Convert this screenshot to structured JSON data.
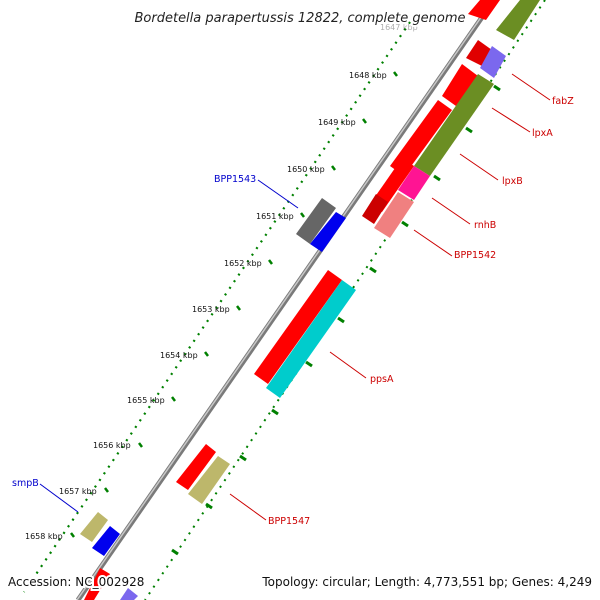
{
  "title": "Bordetella parapertussis 12822, complete genome",
  "accession": "Accession: NC_002928",
  "summary": "Topology: circular; Length: 4,773,551 bp; Genes: 4,249",
  "ticks": [
    "1647 kbp",
    "1648 kbp",
    "1649 kbp",
    "1650 kbp",
    "1651 kbp",
    "1652 kbp",
    "1653 kbp",
    "1654 kbp",
    "1655 kbp",
    "1656 kbp",
    "1657 kbp",
    "1658 kbp"
  ],
  "gene_labels": [
    {
      "name": "fabZ",
      "color": "#cc0000"
    },
    {
      "name": "lpxA",
      "color": "#cc0000"
    },
    {
      "name": "lpxB",
      "color": "#cc0000"
    },
    {
      "name": "rnhB",
      "color": "#cc0000"
    },
    {
      "name": "BPP1542",
      "color": "#cc0000"
    },
    {
      "name": "ppsA",
      "color": "#cc0000"
    },
    {
      "name": "BPP1547",
      "color": "#cc0000"
    },
    {
      "name": "BPP1543",
      "color": "#0000cc"
    },
    {
      "name": "smpB",
      "color": "#0000cc"
    }
  ],
  "colors": {
    "cds_forward": "#ff0000",
    "cds_reverse": "#ff0000",
    "blue_feature": "#0000ee",
    "gray_feature": "#666666",
    "olive_feature": "#6b8e23",
    "cyan_feature": "#00cccc",
    "magenta_feature": "#ff1493",
    "pink_feature": "#f08080",
    "khaki_feature": "#bdb76b",
    "purple_feature": "#7b68ee",
    "tick_green": "#008000",
    "backbone": "#888888"
  }
}
